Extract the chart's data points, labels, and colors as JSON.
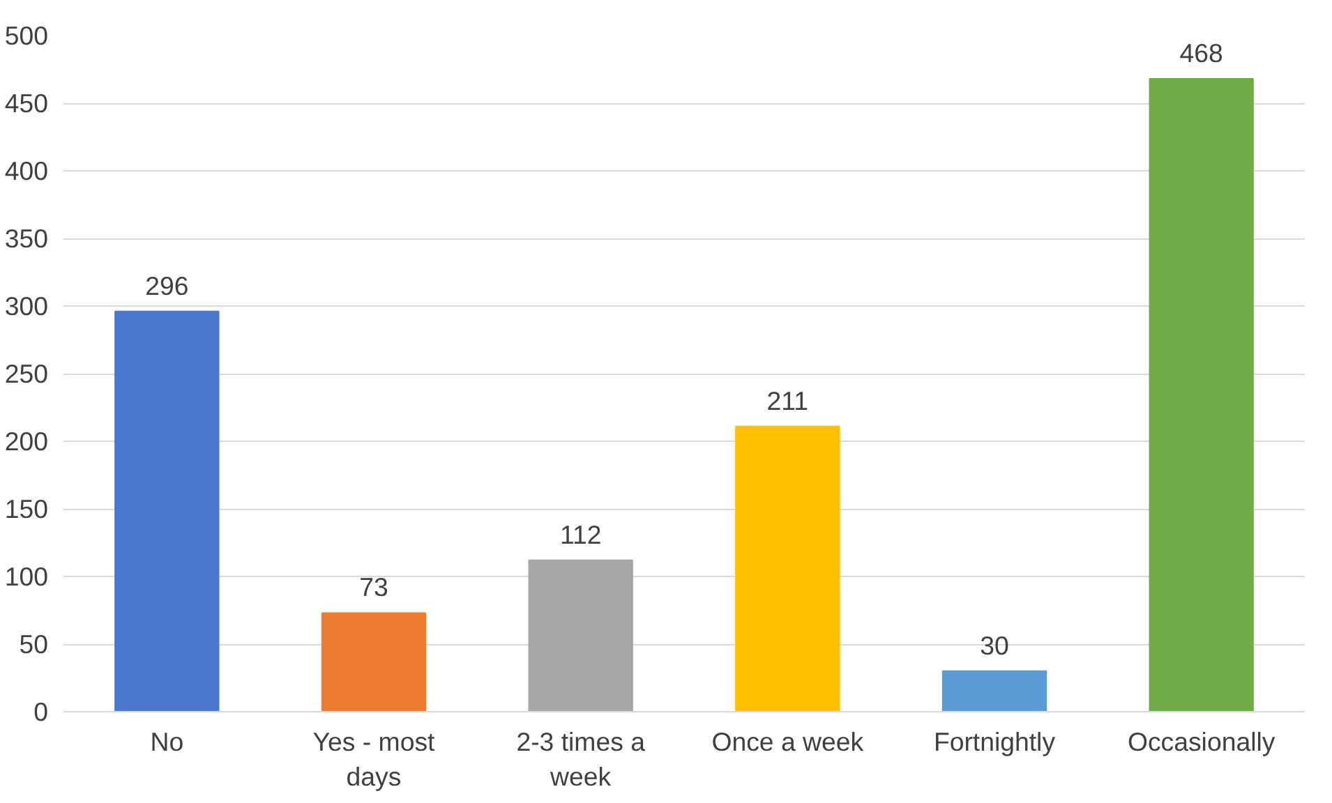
{
  "chart_data": {
    "type": "bar",
    "categories": [
      "No",
      "Yes - most days",
      "2-3 times a week",
      "Once a week",
      "Fortnightly",
      "Occasionally"
    ],
    "values": [
      296,
      73,
      112,
      211,
      30,
      468
    ],
    "colors": [
      "#4a78cf",
      "#ed7d31",
      "#a5a5a5",
      "#ffc000",
      "#5b9bd5",
      "#70ad47"
    ],
    "ylim": [
      0,
      500
    ],
    "yticks": [
      0,
      50,
      100,
      150,
      200,
      250,
      300,
      350,
      400,
      450,
      500
    ],
    "grid": "y",
    "data_labels": true
  }
}
